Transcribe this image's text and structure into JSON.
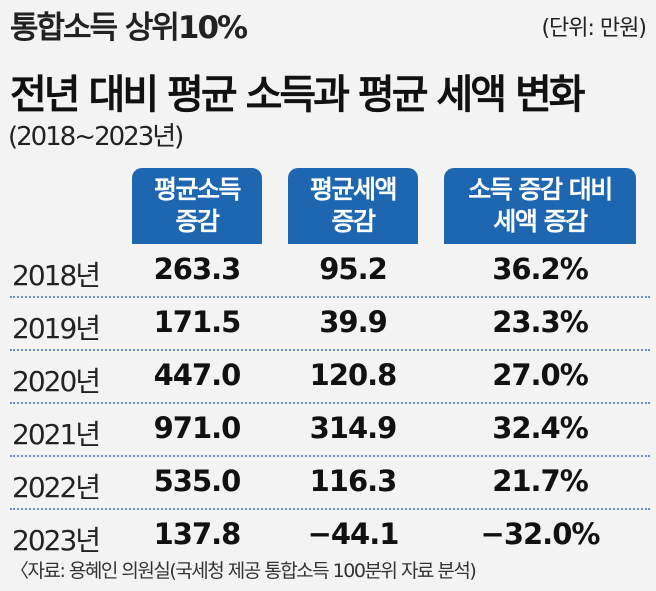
{
  "header": {
    "subtitle": "통합소득 상위10%",
    "unit": "(단위: 만원)",
    "title": "전년 대비 평균 소득과 평균 세액 변화",
    "period": "(2018~2023년)"
  },
  "chart_data": {
    "type": "table",
    "columns": [
      "평균소득\n증감",
      "평균세액\n증감",
      "소득 증감 대비\n세액 증감"
    ],
    "rows": [
      {
        "year": "2018년",
        "values": [
          "263.3",
          "95.2",
          "36.2%"
        ]
      },
      {
        "year": "2019년",
        "values": [
          "171.5",
          "39.9",
          "23.3%"
        ]
      },
      {
        "year": "2020년",
        "values": [
          "447.0",
          "120.8",
          "27.0%"
        ]
      },
      {
        "year": "2021년",
        "values": [
          "971.0",
          "314.9",
          "32.4%"
        ]
      },
      {
        "year": "2022년",
        "values": [
          "535.0",
          "116.3",
          "21.7%"
        ]
      },
      {
        "year": "2023년",
        "values": [
          "137.8",
          "−44.1",
          "−32.0%"
        ]
      }
    ]
  },
  "footer": {
    "source": "〈자료: 용혜인 의원실(국세청 제공 통합소득 100분위 자료 분석)"
  },
  "colors": {
    "header_bg": "#1f66b1",
    "header_text": "#ffffff",
    "background": "#f3f3f3",
    "divider": "#6d8fc4"
  }
}
